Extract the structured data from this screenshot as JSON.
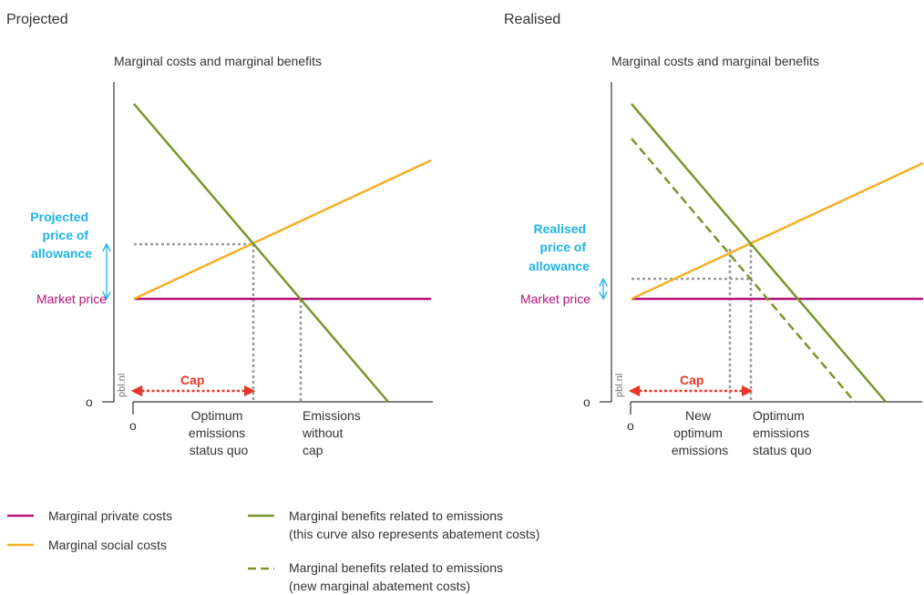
{
  "panels": {
    "projected": {
      "title": "Projected",
      "subtitle": "Marginal costs and marginal benefits",
      "price_label": [
        "Projected",
        "price of",
        "allowance"
      ],
      "market_price": "Market price",
      "origin_y": "o",
      "origin_x": "o",
      "watermark": "pbl.nl",
      "cap": "Cap",
      "x_labels": [
        [
          "Optimum",
          "emissions",
          "status quo"
        ],
        [
          "Emissions",
          "without",
          "cap"
        ]
      ]
    },
    "realised": {
      "title": "Realised",
      "subtitle": "Marginal costs and marginal benefits",
      "price_label": [
        "Realised",
        "price of",
        "allowance"
      ],
      "market_price": "Market price",
      "origin_y": "o",
      "origin_x": "o",
      "watermark": "pbl.nl",
      "cap": "Cap",
      "x_labels": [
        [
          "New",
          "optimum",
          "emissions"
        ],
        [
          "Optimum",
          "emissions",
          "status quo"
        ]
      ]
    }
  },
  "legend": {
    "private_costs": "Marginal private costs",
    "social_costs": "Marginal social costs",
    "benefits": [
      "Marginal benefits related to emissions",
      "(this curve also represents abatement costs)"
    ],
    "benefits_new": [
      "Marginal benefits related to emissions",
      "(new marginal abatement costs)"
    ]
  },
  "colors": {
    "private_costs": "#b5137a",
    "social_costs": "#f5ae25",
    "benefits": "#7a962a",
    "price_label": "#1fb3e6",
    "cap": "#e8372a"
  }
}
